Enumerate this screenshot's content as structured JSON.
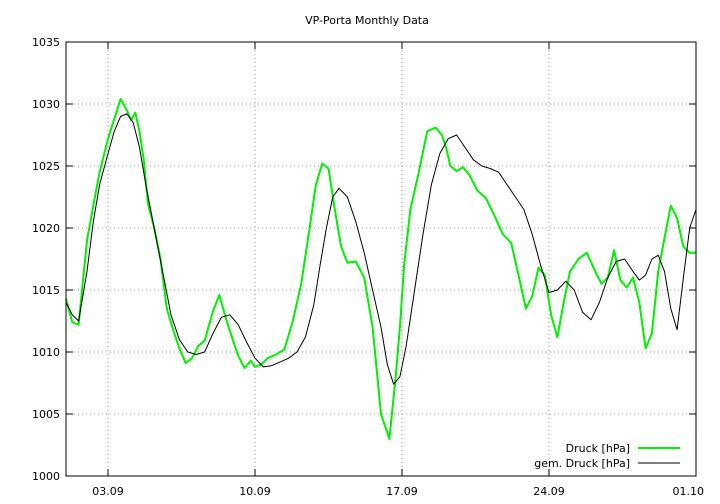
{
  "chart_data": {
    "type": "line",
    "title": "VP-Porta Monthly Data",
    "xlabel": "",
    "ylabel": "",
    "x_unit": "days since 01.09",
    "xlim": [
      0,
      30
    ],
    "ylim": [
      1000,
      1035
    ],
    "x_ticks": [
      {
        "x": 2,
        "label": "03.09"
      },
      {
        "x": 9,
        "label": "10.09"
      },
      {
        "x": 16,
        "label": "17.09"
      },
      {
        "x": 23,
        "label": "24.09"
      },
      {
        "x": 30,
        "label": "01.10"
      }
    ],
    "y_ticks": [
      1000,
      1005,
      1010,
      1015,
      1020,
      1025,
      1030,
      1035
    ],
    "grid": true,
    "legend_position": "bottom-right",
    "series": [
      {
        "name": "Druck [hPa]",
        "color": "#00ee00",
        "x": [
          0,
          0.3,
          0.6,
          1.0,
          1.3,
          1.6,
          2.0,
          2.3,
          2.6,
          2.9,
          3.1,
          3.3,
          3.5,
          3.7,
          3.9,
          4.2,
          4.5,
          4.8,
          5.1,
          5.4,
          5.7,
          6.0,
          6.3,
          6.6,
          7.0,
          7.3,
          7.6,
          7.9,
          8.2,
          8.5,
          8.8,
          9.0,
          9.3,
          9.6,
          10.0,
          10.4,
          10.8,
          11.2,
          11.6,
          11.9,
          12.2,
          12.5,
          12.8,
          13.1,
          13.4,
          13.8,
          14.2,
          14.6,
          15.0,
          15.4,
          15.7,
          15.9,
          16.1,
          16.4,
          16.8,
          17.2,
          17.6,
          17.9,
          18.1,
          18.3,
          18.6,
          18.9,
          19.2,
          19.6,
          20.0,
          20.4,
          20.8,
          21.2,
          21.6,
          21.9,
          22.2,
          22.5,
          22.8,
          23.1,
          23.4,
          23.7,
          24.0,
          24.4,
          24.8,
          25.2,
          25.5,
          25.8,
          26.1,
          26.4,
          26.7,
          27.0,
          27.3,
          27.6,
          27.9,
          28.2,
          28.5,
          28.8,
          29.1,
          29.4,
          29.7,
          30.0
        ],
        "y": [
          1014.3,
          1012.4,
          1012.2,
          1019.0,
          1021.8,
          1024.5,
          1027.2,
          1028.8,
          1030.4,
          1029.5,
          1028.7,
          1029.3,
          1027.8,
          1025.5,
          1022.0,
          1020.0,
          1017.5,
          1013.5,
          1011.8,
          1010.3,
          1009.1,
          1009.5,
          1010.5,
          1010.9,
          1013.3,
          1014.6,
          1012.8,
          1011.2,
          1009.7,
          1008.7,
          1009.3,
          1008.8,
          1009.0,
          1009.5,
          1009.8,
          1010.2,
          1012.5,
          1015.5,
          1020.0,
          1023.5,
          1025.2,
          1024.8,
          1021.5,
          1018.5,
          1017.2,
          1017.3,
          1016.0,
          1012.0,
          1005.0,
          1003.0,
          1008.0,
          1012.0,
          1017.0,
          1021.5,
          1024.5,
          1027.8,
          1028.1,
          1027.5,
          1026.5,
          1025.0,
          1024.6,
          1024.9,
          1024.3,
          1023.0,
          1022.4,
          1021.0,
          1019.5,
          1018.8,
          1015.8,
          1013.5,
          1014.5,
          1016.8,
          1016.2,
          1013.0,
          1011.2,
          1014.0,
          1016.5,
          1017.5,
          1018.0,
          1016.5,
          1015.5,
          1016.0,
          1018.2,
          1015.8,
          1015.2,
          1016.0,
          1014.0,
          1010.3,
          1011.5,
          1016.5,
          1019.2,
          1021.8,
          1020.8,
          1018.5,
          1018.0,
          1018.0
        ]
      },
      {
        "name": "gem. Druck [hPa]",
        "color": "#000000",
        "x": [
          0,
          0.3,
          0.6,
          1.0,
          1.3,
          1.6,
          2.0,
          2.3,
          2.6,
          2.9,
          3.2,
          3.5,
          3.8,
          4.2,
          4.6,
          5.0,
          5.4,
          5.8,
          6.2,
          6.6,
          7.0,
          7.4,
          7.8,
          8.2,
          8.6,
          9.0,
          9.4,
          9.8,
          10.2,
          10.6,
          11.0,
          11.4,
          11.8,
          12.1,
          12.4,
          12.7,
          13.0,
          13.4,
          13.8,
          14.2,
          14.6,
          15.0,
          15.3,
          15.6,
          15.9,
          16.2,
          16.6,
          17.0,
          17.4,
          17.8,
          18.2,
          18.6,
          19.0,
          19.4,
          19.8,
          20.2,
          20.6,
          21.0,
          21.4,
          21.8,
          22.2,
          22.6,
          23.0,
          23.4,
          23.8,
          24.2,
          24.6,
          25.0,
          25.4,
          25.8,
          26.2,
          26.6,
          27.0,
          27.3,
          27.6,
          27.9,
          28.2,
          28.5,
          28.8,
          29.1,
          29.4,
          29.7,
          30.0
        ],
        "y": [
          1014.0,
          1013.0,
          1012.5,
          1016.5,
          1020.5,
          1023.5,
          1026.0,
          1027.8,
          1029.0,
          1029.2,
          1028.5,
          1026.5,
          1023.5,
          1020.0,
          1016.5,
          1013.0,
          1011.0,
          1010.0,
          1009.8,
          1010.0,
          1011.5,
          1012.8,
          1013.0,
          1012.2,
          1010.8,
          1009.5,
          1008.8,
          1008.9,
          1009.2,
          1009.5,
          1010.0,
          1011.2,
          1013.8,
          1017.0,
          1020.0,
          1022.5,
          1023.2,
          1022.5,
          1020.5,
          1018.0,
          1015.0,
          1012.0,
          1009.0,
          1007.4,
          1008.0,
          1010.5,
          1015.0,
          1019.5,
          1023.5,
          1026.0,
          1027.2,
          1027.5,
          1026.5,
          1025.5,
          1025.0,
          1024.8,
          1024.5,
          1023.5,
          1022.5,
          1021.5,
          1019.5,
          1017.0,
          1014.8,
          1015.0,
          1015.7,
          1015.0,
          1013.2,
          1012.6,
          1014.0,
          1016.0,
          1017.3,
          1017.5,
          1016.5,
          1015.8,
          1016.2,
          1017.5,
          1017.8,
          1016.5,
          1013.5,
          1011.8,
          1016.0,
          1020.0,
          1021.5
        ]
      }
    ]
  }
}
